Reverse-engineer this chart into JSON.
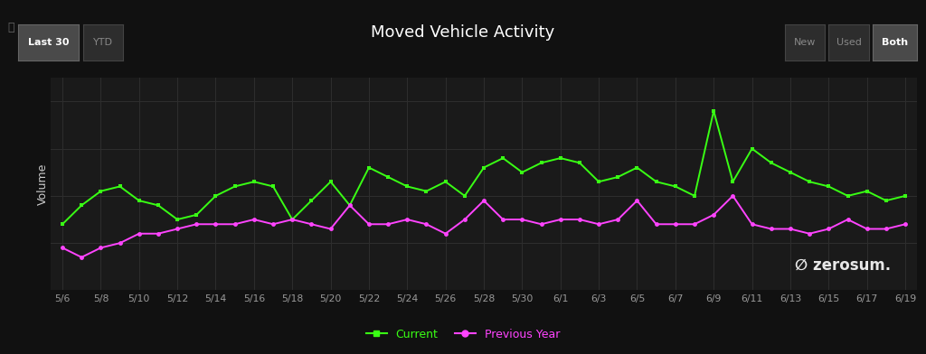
{
  "title": "Moved Vehicle Activity",
  "ylabel": "Volume",
  "bg_color": "#111111",
  "plot_bg_color": "#1a1a1a",
  "grid_color": "#2e2e2e",
  "title_color": "#ffffff",
  "label_color": "#cccccc",
  "tick_color": "#999999",
  "x_labels": [
    "5/6",
    "5/8",
    "5/10",
    "5/12",
    "5/14",
    "5/16",
    "5/18",
    "5/20",
    "5/22",
    "5/24",
    "5/26",
    "5/28",
    "5/30",
    "6/1",
    "6/3",
    "6/5",
    "6/7",
    "6/9",
    "6/11",
    "6/13",
    "6/15",
    "6/17",
    "6/19"
  ],
  "current_color": "#39ff14",
  "prev_year_color": "#ff44ff",
  "current_label": "Current",
  "prev_year_label": "Previous Year",
  "current_y": [
    28,
    36,
    42,
    44,
    38,
    36,
    30,
    32,
    40,
    44,
    46,
    44,
    30,
    38,
    46,
    36,
    52,
    48,
    44,
    42,
    46,
    40,
    52,
    56,
    50,
    54,
    56,
    54,
    46,
    48,
    52,
    46,
    44,
    40,
    76,
    46,
    60,
    54,
    50,
    46,
    44,
    40,
    42,
    38,
    40
  ],
  "prev_y": [
    18,
    14,
    18,
    20,
    24,
    24,
    26,
    28,
    28,
    28,
    30,
    28,
    30,
    28,
    26,
    36,
    28,
    28,
    30,
    28,
    24,
    30,
    38,
    30,
    30,
    28,
    30,
    30,
    28,
    30,
    38,
    28,
    28,
    28,
    32,
    40,
    28,
    26,
    26,
    24,
    26,
    30,
    26,
    26,
    28
  ],
  "ylim": [
    0,
    90
  ],
  "figsize": [
    10.24,
    3.92
  ],
  "dpi": 100
}
